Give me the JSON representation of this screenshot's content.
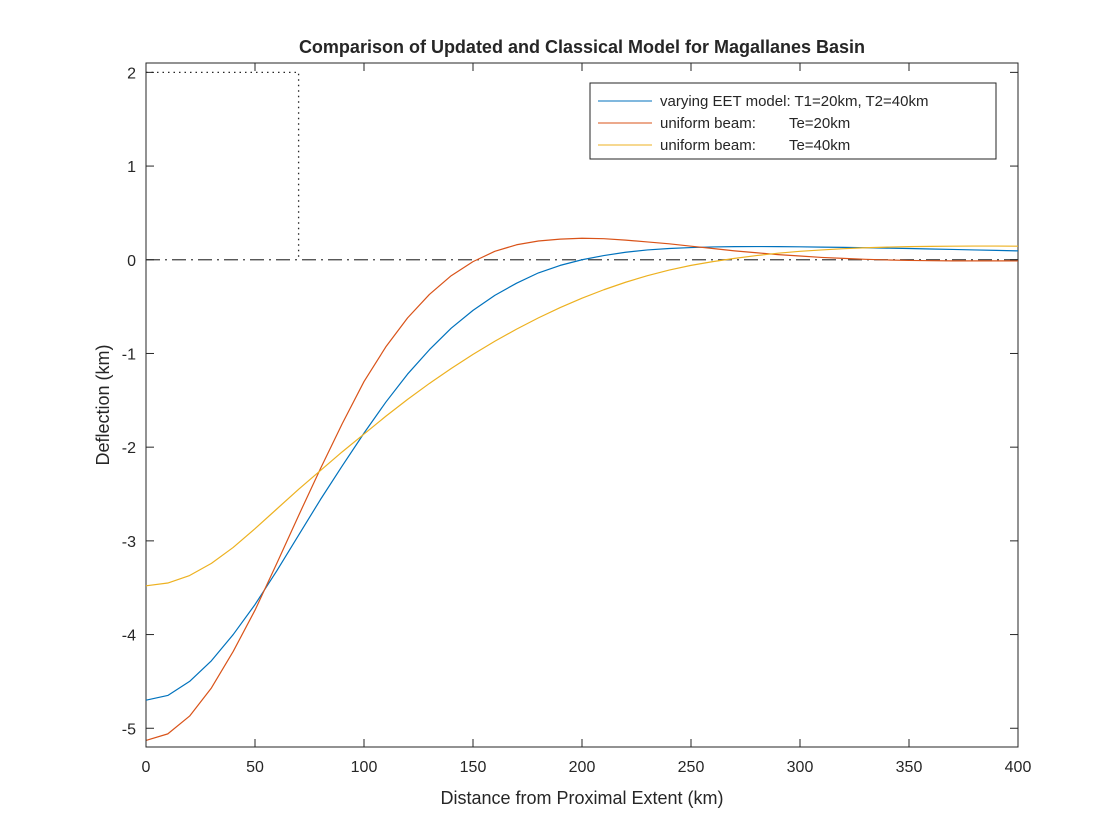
{
  "chart_data": {
    "type": "line",
    "title": "Comparison of Updated and Classical Model for Magallanes Basin",
    "xlabel": "Distance from Proximal Extent (km)",
    "ylabel": "Deflection (km)",
    "xlim": [
      0,
      400
    ],
    "ylim": [
      -5.2,
      2.1
    ],
    "xticks": [
      0,
      50,
      100,
      150,
      200,
      250,
      300,
      350,
      400
    ],
    "yticks": [
      2,
      1,
      0,
      -1,
      -2,
      -3,
      -4,
      -5
    ],
    "grid": false,
    "legend_position": "top-right",
    "series": [
      {
        "name": "varying EET model: T1=20km, T2=40km",
        "color": "#0072BD",
        "x": [
          0,
          10,
          20,
          30,
          40,
          50,
          60,
          70,
          80,
          90,
          100,
          110,
          120,
          130,
          140,
          150,
          160,
          170,
          180,
          190,
          200,
          210,
          220,
          230,
          240,
          250,
          260,
          270,
          280,
          290,
          300,
          310,
          320,
          330,
          340,
          350,
          360,
          370,
          380,
          390,
          400
        ],
        "y": [
          -4.7,
          -4.65,
          -4.5,
          -4.28,
          -4.0,
          -3.68,
          -3.32,
          -2.94,
          -2.56,
          -2.2,
          -1.85,
          -1.52,
          -1.22,
          -0.96,
          -0.73,
          -0.54,
          -0.38,
          -0.25,
          -0.14,
          -0.06,
          0.0,
          0.045,
          0.08,
          0.105,
          0.12,
          0.13,
          0.137,
          0.14,
          0.141,
          0.14,
          0.138,
          0.135,
          0.132,
          0.128,
          0.124,
          0.12,
          0.115,
          0.11,
          0.105,
          0.1,
          0.095
        ]
      },
      {
        "name": "uniform beam:        Te=20km",
        "color": "#D95319",
        "x": [
          0,
          10,
          20,
          30,
          40,
          50,
          60,
          70,
          80,
          90,
          100,
          110,
          120,
          130,
          140,
          150,
          160,
          170,
          180,
          190,
          200,
          210,
          220,
          230,
          240,
          250,
          260,
          270,
          280,
          290,
          300,
          310,
          320,
          330,
          340,
          350,
          360,
          370,
          380,
          390,
          400
        ],
        "y": [
          -5.13,
          -5.06,
          -4.87,
          -4.57,
          -4.18,
          -3.74,
          -3.24,
          -2.73,
          -2.23,
          -1.75,
          -1.3,
          -0.93,
          -0.62,
          -0.37,
          -0.17,
          -0.02,
          0.09,
          0.16,
          0.2,
          0.22,
          0.23,
          0.225,
          0.21,
          0.19,
          0.17,
          0.145,
          0.12,
          0.095,
          0.075,
          0.055,
          0.04,
          0.025,
          0.015,
          0.005,
          -0.002,
          -0.007,
          -0.01,
          -0.012,
          -0.012,
          -0.012,
          -0.012
        ]
      },
      {
        "name": "uniform beam:        Te=40km",
        "color": "#EDB120",
        "x": [
          0,
          10,
          20,
          30,
          40,
          50,
          60,
          70,
          80,
          90,
          100,
          110,
          120,
          130,
          140,
          150,
          160,
          170,
          180,
          190,
          200,
          210,
          220,
          230,
          240,
          250,
          260,
          270,
          280,
          290,
          300,
          310,
          320,
          330,
          340,
          350,
          360,
          370,
          380,
          390,
          400
        ],
        "y": [
          -3.48,
          -3.45,
          -3.37,
          -3.24,
          -3.07,
          -2.87,
          -2.66,
          -2.45,
          -2.25,
          -2.05,
          -1.86,
          -1.67,
          -1.49,
          -1.32,
          -1.16,
          -1.01,
          -0.87,
          -0.74,
          -0.62,
          -0.51,
          -0.41,
          -0.32,
          -0.24,
          -0.17,
          -0.11,
          -0.06,
          -0.02,
          0.015,
          0.045,
          0.07,
          0.09,
          0.105,
          0.118,
          0.128,
          0.135,
          0.14,
          0.143,
          0.145,
          0.146,
          0.146,
          0.145
        ]
      }
    ],
    "reference_lines": {
      "load_outline": {
        "x": [
          0,
          70,
          70
        ],
        "y": [
          2,
          2,
          0
        ],
        "style": "dotted"
      },
      "zero_line": {
        "y": 0,
        "style": "dash-dot"
      }
    }
  }
}
